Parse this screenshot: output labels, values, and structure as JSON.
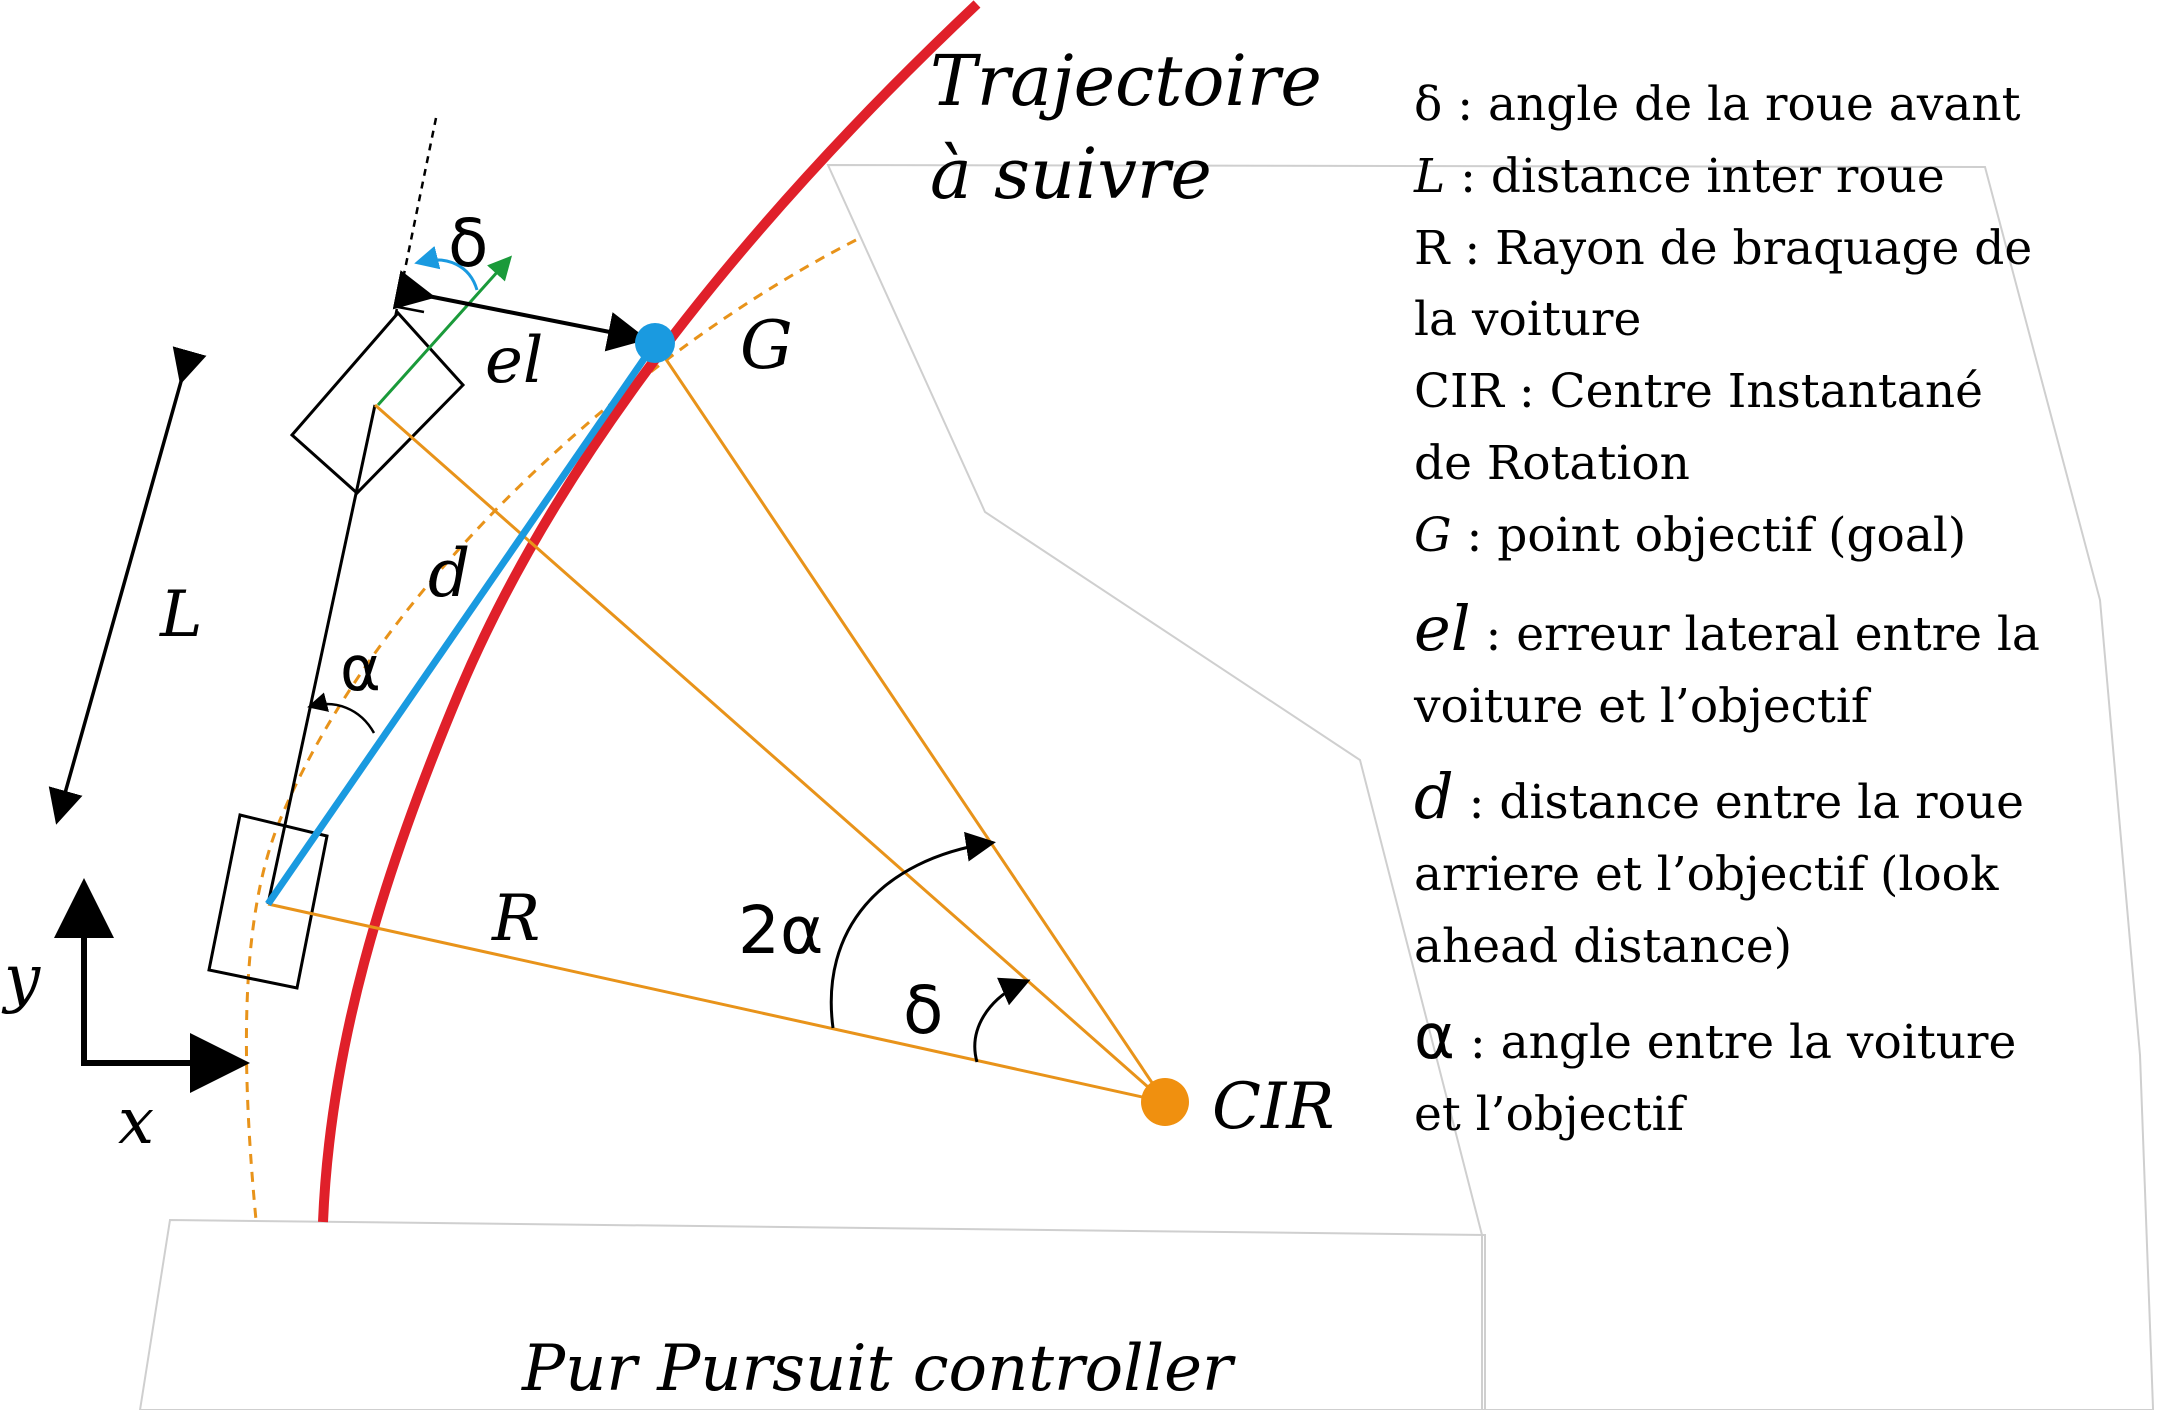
{
  "diagram": {
    "title": "Pur Pursuit controller",
    "trajectory_label": [
      "Trajectoire",
      "à suivre"
    ],
    "labels": {
      "delta_top": "δ",
      "el": "el",
      "G": "G",
      "L": "L",
      "d": "d",
      "alpha": "α",
      "two_alpha": "2α",
      "R": "R",
      "delta_bottom": "δ",
      "CIR": "CIR",
      "x": "x",
      "y": "y"
    },
    "legend": [
      {
        "symbol": "δ",
        "text": " : angle de la roue avant"
      },
      {
        "symbol": "L",
        "text": " : distance inter roue"
      },
      {
        "symbol": "",
        "text": "R : Rayon de braquage de"
      },
      {
        "symbol": "",
        "text": "la voiture"
      },
      {
        "symbol": "",
        "text": "CIR : Centre Instantané"
      },
      {
        "symbol": "",
        "text": "de Rotation"
      },
      {
        "symbol": "G",
        "text": " : point objectif (goal)"
      },
      {
        "symbol": "el",
        "text": " : erreur lateral entre la"
      },
      {
        "symbol": "",
        "text": "voiture et l’objectif"
      },
      {
        "symbol": "d",
        "text": " : distance entre la roue"
      },
      {
        "symbol": "",
        "text": "arriere et l’objectif (look"
      },
      {
        "symbol": "",
        "text": "ahead distance)"
      },
      {
        "symbol": "α",
        "text": " : angle entre la voiture"
      },
      {
        "symbol": "",
        "text": "et l’objectif"
      }
    ],
    "colors": {
      "trajectory": "#e0202a",
      "goal": "#1a9ae0",
      "cir": "#f0900f",
      "construction": "#e8931a",
      "steer": "#1a9a3a",
      "black": "#000000"
    }
  }
}
